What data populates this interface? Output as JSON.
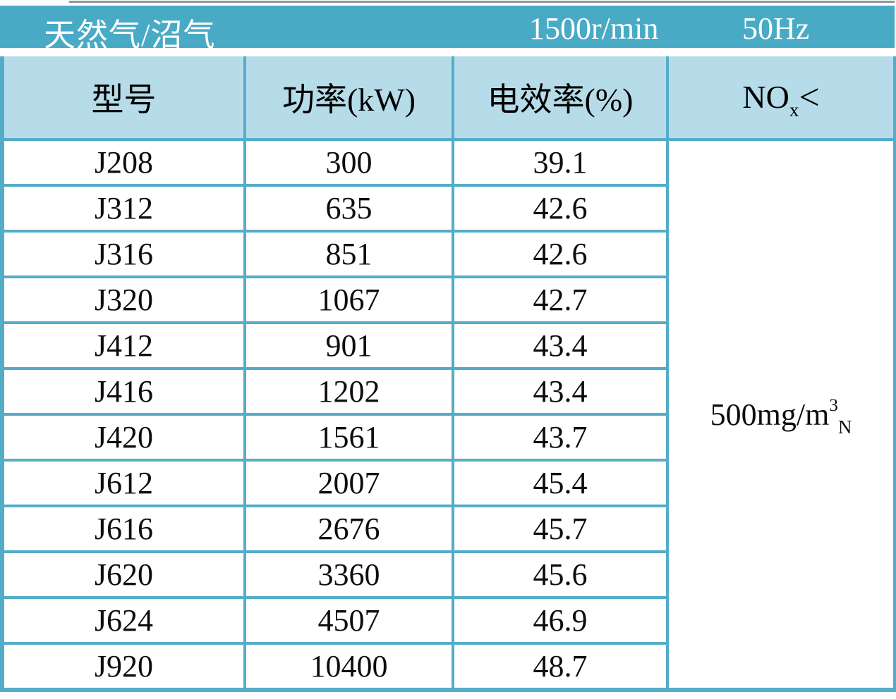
{
  "header_bar": {
    "fuel_type": "天然气/沼气",
    "speed": "1500r/min",
    "frequency": "50Hz"
  },
  "table": {
    "columns": {
      "model": "型号",
      "power": "功率(kW)",
      "efficiency": "电效率(%)"
    },
    "nox_column": {
      "base": "NO",
      "subscript": "x",
      "comparator": "<"
    },
    "rows": [
      {
        "model": "J208",
        "power": "300",
        "efficiency": "39.1"
      },
      {
        "model": "J312",
        "power": "635",
        "efficiency": "42.6"
      },
      {
        "model": "J316",
        "power": "851",
        "efficiency": "42.6"
      },
      {
        "model": "J320",
        "power": "1067",
        "efficiency": "42.7"
      },
      {
        "model": "J412",
        "power": "901",
        "efficiency": "43.4"
      },
      {
        "model": "J416",
        "power": "1202",
        "efficiency": "43.4"
      },
      {
        "model": "J420",
        "power": "1561",
        "efficiency": "43.7"
      },
      {
        "model": "J612",
        "power": "2007",
        "efficiency": "45.4"
      },
      {
        "model": "J616",
        "power": "2676",
        "efficiency": "45.7"
      },
      {
        "model": "J620",
        "power": "3360",
        "efficiency": "45.6"
      },
      {
        "model": "J624",
        "power": "4507",
        "efficiency": "46.9"
      },
      {
        "model": "J920",
        "power": "10400",
        "efficiency": "48.7"
      }
    ],
    "nox_value": {
      "base": "500mg/m",
      "superscript": "3",
      "subscript": "N"
    }
  },
  "colors": {
    "title_bar_teal": "#49aac6",
    "header_light_blue": "#b7dce9",
    "border_teal": "#54adc8",
    "text": "#0d0d0d"
  }
}
